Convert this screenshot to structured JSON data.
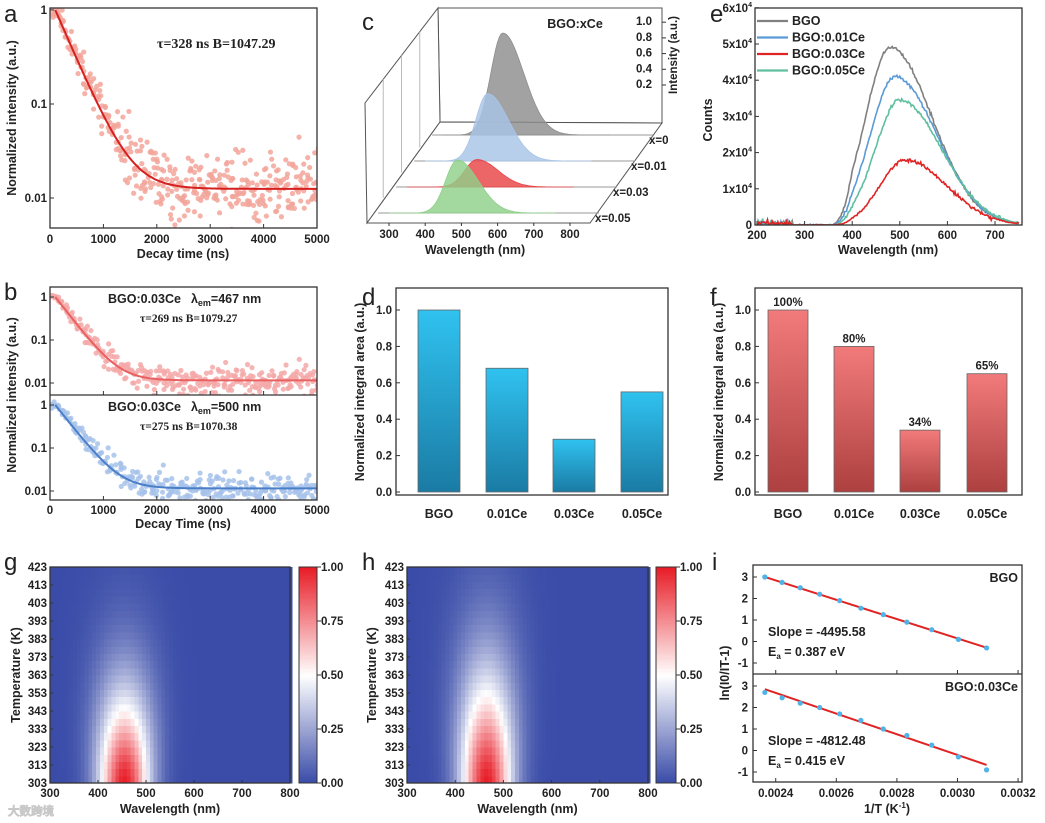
{
  "figure": {
    "panel_labels": [
      "a",
      "b",
      "c",
      "d",
      "e",
      "f",
      "g",
      "h",
      "i"
    ],
    "watermark": "大数跨境"
  },
  "chart_data": [
    {
      "id": "a",
      "type": "scatter",
      "xlabel": "Decay time (ns)",
      "ylabel": "Normalized intensity (a.u.)",
      "xlim": [
        0,
        5000
      ],
      "ylim": [
        0.005,
        1.1
      ],
      "yscale": "log",
      "xticks": [
        "0",
        "1000",
        "2000",
        "3000",
        "4000",
        "5000"
      ],
      "yticks": [
        "1",
        "0.1",
        "0.01"
      ],
      "annotation": "τ=328 ns   B=1047.29",
      "fit": {
        "tau_ns": 328,
        "baseline": 0.0125,
        "t0_ns": 100
      },
      "series_color": "#d62020",
      "point_color": "#f2a59a"
    },
    {
      "id": "b",
      "type": "scatter",
      "xlabel": "Decay Time (ns)",
      "ylabel": "Normalized intensity (a.u.)",
      "xlim": [
        0,
        5000
      ],
      "yscale": "log",
      "xticks": [
        "0",
        "1000",
        "2000",
        "3000",
        "4000",
        "5000"
      ],
      "yticks": [
        "1",
        "0.1",
        "0.01"
      ],
      "subplots": [
        {
          "sample": "BGO:0.03Ce",
          "lambda": "λ",
          "lambda_sub": "em",
          "lambda_value": "=467 nm",
          "annotation": "τ=269 ns   B=1079.27",
          "tau_ns": 269,
          "baseline": 0.0115,
          "line_color": "#e86060",
          "point_color": "#f4a8a8"
        },
        {
          "sample": "BGO:0.03Ce",
          "lambda": "λ",
          "lambda_sub": "em",
          "lambda_value": "=500 nm",
          "annotation": "τ=275 ns   B=1070.38",
          "tau_ns": 275,
          "baseline": 0.0115,
          "line_color": "#4a7fc8",
          "point_color": "#a6c2ea"
        }
      ]
    },
    {
      "id": "c",
      "type": "area",
      "title": "BGO:xCe",
      "xlabel": "Wavelength (nm)",
      "zlabel": "Intensity (a.u.)",
      "xticks": [
        "300",
        "400",
        "500",
        "600",
        "700",
        "800"
      ],
      "zticks": [
        "0.2",
        "0.4",
        "0.6",
        "0.8",
        "1.0"
      ],
      "series": [
        {
          "name": "x=0",
          "peak_wavelength": 465,
          "peak_intensity": 1.0,
          "color": "#8e8e8e"
        },
        {
          "name": "x=0.01",
          "peak_wavelength": 473,
          "peak_intensity": 0.66,
          "color": "#a8c4e8"
        },
        {
          "name": "x=0.03",
          "peak_wavelength": 493,
          "peak_intensity": 0.27,
          "color": "#e84446"
        },
        {
          "name": "x=0.05",
          "peak_wavelength": 489,
          "peak_intensity": 0.52,
          "color": "#8fd08a"
        }
      ]
    },
    {
      "id": "d",
      "type": "bar",
      "ylabel": "Normalized integral area (a.u.)",
      "ylim": [
        0,
        1.1
      ],
      "categories": [
        "BGO",
        "0.01Ce",
        "0.03Ce",
        "0.05Ce"
      ],
      "values": [
        1.0,
        0.68,
        0.29,
        0.55
      ],
      "yticks": [
        "0.0",
        "0.2",
        "0.4",
        "0.6",
        "0.8",
        "1.0"
      ],
      "color_top": "#30c2f0",
      "color_bottom": "#1a7ba4"
    },
    {
      "id": "e",
      "type": "line",
      "xlabel": "Wavelength (nm)",
      "ylabel": "Counts",
      "xlim": [
        200,
        750
      ],
      "ylim": [
        0,
        60000
      ],
      "xticks": [
        "200",
        "300",
        "400",
        "500",
        "600",
        "700"
      ],
      "yticks": [
        {
          "m": "0",
          "e": ""
        },
        {
          "m": "1x10",
          "e": "4"
        },
        {
          "m": "2x10",
          "e": "4"
        },
        {
          "m": "3x10",
          "e": "4"
        },
        {
          "m": "4x10",
          "e": "4"
        },
        {
          "m": "5x10",
          "e": "4"
        },
        {
          "m": "6x10",
          "e": "4"
        }
      ],
      "legend_position": "top-left",
      "series": [
        {
          "name": "BGO",
          "peak_wavelength": 480,
          "peak_counts": 49000,
          "color": "#808080"
        },
        {
          "name": "BGO:0.01Ce",
          "peak_wavelength": 490,
          "peak_counts": 41000,
          "color": "#5a9bd6"
        },
        {
          "name": "BGO:0.03Ce",
          "peak_wavelength": 510,
          "peak_counts": 18000,
          "color": "#e02424"
        },
        {
          "name": "BGO:0.05Ce",
          "peak_wavelength": 500,
          "peak_counts": 34500,
          "color": "#5fbf9e"
        }
      ]
    },
    {
      "id": "f",
      "type": "bar",
      "ylabel": "Normalized integral area (a.u.)",
      "ylim": [
        0,
        1.1
      ],
      "categories": [
        "BGO",
        "0.01Ce",
        "0.03Ce",
        "0.05Ce"
      ],
      "values": [
        1.0,
        0.8,
        0.34,
        0.65
      ],
      "data_labels": [
        "100%",
        "80%",
        "34%",
        "65%"
      ],
      "yticks": [
        "0.0",
        "0.2",
        "0.4",
        "0.6",
        "0.8",
        "1.0"
      ],
      "color_top": "#f27a7a",
      "color_bottom": "#ad4040"
    },
    {
      "id": "g",
      "type": "heatmap",
      "xlabel": "Wavelength (nm)",
      "ylabel": "Temperature (K)",
      "xlim": [
        300,
        800
      ],
      "ylim": [
        303,
        423
      ],
      "xticks": [
        "300",
        "400",
        "500",
        "600",
        "700",
        "800"
      ],
      "yticks": [
        "303",
        "313",
        "323",
        "333",
        "343",
        "353",
        "363",
        "373",
        "383",
        "393",
        "403",
        "413",
        "423"
      ],
      "colorbar_ticks": [
        "0.00",
        "0.25",
        "0.50",
        "0.75",
        "1.00"
      ],
      "peak_wavelength": 455,
      "quench_scale_K": 52,
      "colormap": {
        "low": "#3a4ca8",
        "mid": "#ffffff",
        "high": "#e81e28"
      }
    },
    {
      "id": "h",
      "type": "heatmap",
      "xlabel": "Wavelength (nm)",
      "ylabel": "Temperature (K)",
      "xlim": [
        300,
        800
      ],
      "ylim": [
        303,
        423
      ],
      "xticks": [
        "300",
        "400",
        "500",
        "600",
        "700",
        "800"
      ],
      "yticks": [
        "303",
        "313",
        "323",
        "333",
        "343",
        "353",
        "363",
        "373",
        "383",
        "393",
        "403",
        "413",
        "423"
      ],
      "colorbar_ticks": [
        "0.00",
        "0.25",
        "0.50",
        "0.75",
        "1.00"
      ],
      "peak_wavelength": 465,
      "quench_scale_K": 62,
      "colormap": {
        "low": "#3a4ca8",
        "mid": "#ffffff",
        "high": "#e81e28"
      }
    },
    {
      "id": "i",
      "type": "scatter",
      "xlabel": "1/T (K",
      "xlabel_sup": "-1",
      "xlabel_end": ")",
      "ylabel": "ln(I0/IT-1)",
      "xlim": [
        0.002325,
        0.003213
      ],
      "xticks": [
        "0.0024",
        "0.0026",
        "0.0028",
        "0.0030",
        "0.0032"
      ],
      "yticks": [
        "-1",
        "0",
        "1",
        "2",
        "3"
      ],
      "subplots": [
        {
          "name": "BGO",
          "slope_label": "Slope = -4495.58",
          "ea_label": "E",
          "ea_sub": "a",
          "ea_value": " = 0.387 eV",
          "slope": -4495.58,
          "intercept": 13.63,
          "x": [
            0.002364,
            0.002421,
            0.002481,
            0.002545,
            0.002611,
            0.002681,
            0.002755,
            0.002833,
            0.002915,
            0.003003,
            0.003096
          ],
          "y": [
            3.0,
            2.75,
            2.5,
            2.2,
            1.9,
            1.55,
            1.25,
            0.9,
            0.55,
            0.1,
            -0.3
          ]
        },
        {
          "name": "BGO:0.03Ce",
          "slope_label": "Slope = -4812.48",
          "ea_label": "E",
          "ea_sub": "a",
          "ea_value": " = 0.415 eV",
          "slope": -4812.48,
          "intercept": 14.23,
          "x": [
            0.002364,
            0.002421,
            0.002481,
            0.002545,
            0.002611,
            0.002681,
            0.002755,
            0.002833,
            0.002915,
            0.003003,
            0.003096
          ],
          "y": [
            2.7,
            2.45,
            2.2,
            2.0,
            1.7,
            1.4,
            1.0,
            0.7,
            0.25,
            -0.3,
            -0.9
          ]
        }
      ],
      "point_color": "#4fb3e8",
      "line_color": "#e02424"
    }
  ]
}
